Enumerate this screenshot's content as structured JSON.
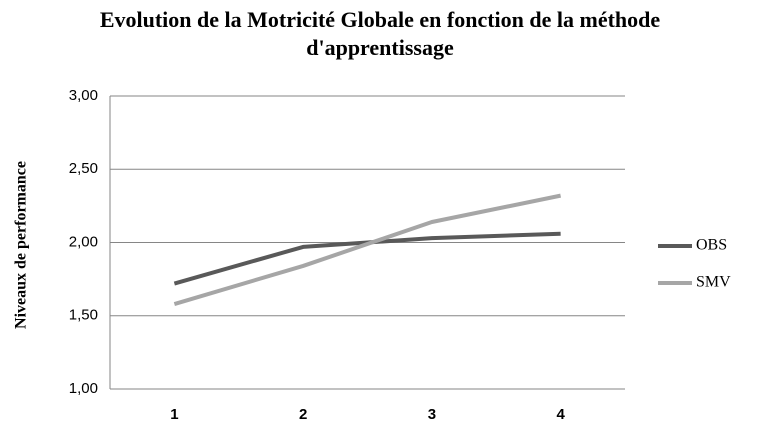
{
  "chart_data": {
    "type": "line",
    "title": "Evolution de la Motricité Globale en fonction de la méthode d'apprentissage",
    "ylabel": "Niveaux de performance",
    "categories": [
      "1",
      "2",
      "3",
      "4"
    ],
    "series": [
      {
        "name": "OBS",
        "color": "#595959",
        "values": [
          1.72,
          1.97,
          2.03,
          2.06
        ]
      },
      {
        "name": "SMV",
        "color": "#a6a6a6",
        "values": [
          1.58,
          1.84,
          2.14,
          2.32
        ]
      }
    ],
    "ylim": [
      1,
      3
    ],
    "yticks": [
      {
        "value": 1,
        "label": "1,00"
      },
      {
        "value": 1.5,
        "label": "1,50"
      },
      {
        "value": 2,
        "label": "2,00"
      },
      {
        "value": 2.5,
        "label": "2,50"
      },
      {
        "value": 3,
        "label": "3,00"
      }
    ],
    "grid": true,
    "legend": "right"
  }
}
